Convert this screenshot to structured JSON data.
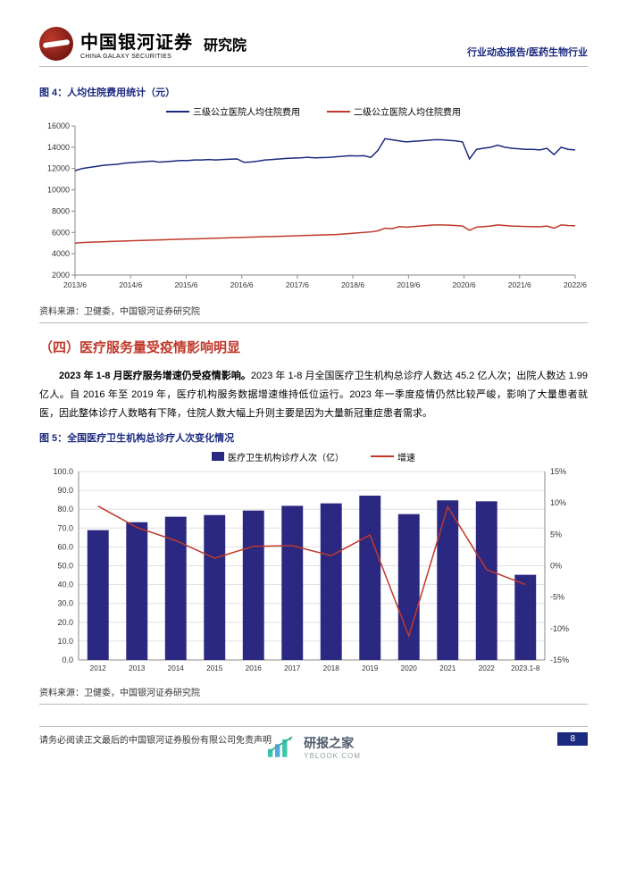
{
  "header": {
    "logo_cn": "中国银河证券",
    "logo_en": "CHINA GALAXY SECURITIES",
    "dept": "研究院",
    "right_text": "行业动态报告/医药生物行业"
  },
  "fig4": {
    "title": "图 4：人均住院费用统计（元）",
    "legend": {
      "s1": {
        "label": "三级公立医院人均住院费用",
        "color": "#1a2a7f"
      },
      "s2": {
        "label": "二级公立医院人均住院费用",
        "color": "#c0392b"
      }
    },
    "ylim": [
      2000,
      16000
    ],
    "ytick_step": 2000,
    "xlabels": [
      "2013/6",
      "2014/6",
      "2015/6",
      "2016/6",
      "2017/6",
      "2018/6",
      "2019/6",
      "2020/6",
      "2021/6",
      "2022/6"
    ],
    "s1_values": [
      11800,
      12000,
      12100,
      12200,
      12300,
      12350,
      12400,
      12500,
      12550,
      12600,
      12650,
      12700,
      12600,
      12650,
      12700,
      12750,
      12750,
      12800,
      12800,
      12850,
      12800,
      12850,
      12880,
      12900,
      12580,
      12620,
      12700,
      12800,
      12850,
      12900,
      12950,
      12980,
      13000,
      13050,
      13000,
      13020,
      13050,
      13100,
      13150,
      13200,
      13180,
      13200,
      13050,
      13700,
      14800,
      14700,
      14600,
      14500,
      14550,
      14600,
      14650,
      14700,
      14700,
      14650,
      14600,
      14500,
      12900,
      13800,
      13900,
      14000,
      14200,
      14000,
      13900,
      13850,
      13800,
      13800,
      13750,
      13900,
      13300,
      14000,
      13800,
      13750
    ],
    "s2_values": [
      5000,
      5050,
      5080,
      5100,
      5120,
      5150,
      5180,
      5200,
      5220,
      5240,
      5260,
      5280,
      5300,
      5320,
      5340,
      5360,
      5380,
      5400,
      5420,
      5440,
      5460,
      5480,
      5500,
      5520,
      5540,
      5560,
      5580,
      5600,
      5620,
      5640,
      5660,
      5680,
      5700,
      5720,
      5740,
      5760,
      5780,
      5800,
      5850,
      5900,
      5950,
      6000,
      6050,
      6150,
      6400,
      6350,
      6550,
      6500,
      6550,
      6600,
      6650,
      6700,
      6700,
      6680,
      6650,
      6600,
      6200,
      6500,
      6550,
      6600,
      6700,
      6650,
      6600,
      6580,
      6560,
      6550,
      6540,
      6600,
      6400,
      6700,
      6650,
      6620
    ],
    "axis_color": "#888888",
    "bg": "#ffffff"
  },
  "src4": "资料来源：卫健委，中国银河证券研究院",
  "section4": {
    "title": "（四）医疗服务量受疫情影响明显",
    "para": "2023 年 1-8 月医疗服务增速仍受疫情影响。2023 年 1-8 月全国医疗卫生机构总诊疗人数达 45.2 亿人次；出院人数达 1.99 亿人。自 2016 年至 2019 年，医疗机构服务数据增速维持低位运行。2023 年一季度疫情仍然比较严峻，影响了大量患者就医，因此整体诊疗人数略有下降，住院人数大幅上升则主要是因为大量新冠重症患者需求。",
    "bold_lead": "2023 年 1-8 月医疗服务增速仍受疫情影响。"
  },
  "fig5": {
    "title": "图 5：全国医疗卫生机构总诊疗人次变化情况",
    "legend": {
      "bar": {
        "label": "医疗卫生机构诊疗人次（亿）",
        "color": "#2a2880"
      },
      "line": {
        "label": "增速",
        "color": "#c0392b"
      }
    },
    "xlabels": [
      "2012",
      "2013",
      "2014",
      "2015",
      "2016",
      "2017",
      "2018",
      "2019",
      "2020",
      "2021",
      "2022",
      "2023.1-8"
    ],
    "bar_values": [
      68.9,
      73.1,
      76.0,
      76.9,
      79.3,
      81.8,
      83.1,
      87.2,
      77.4,
      84.7,
      84.2,
      45.2
    ],
    "line_values": [
      9.5,
      6.1,
      4.0,
      1.2,
      3.1,
      3.2,
      1.6,
      4.9,
      -11.2,
      9.4,
      -0.6,
      -3.0
    ],
    "y1": {
      "lim": [
        0,
        100
      ],
      "tick": 10
    },
    "y2": {
      "lim": [
        -15,
        15
      ],
      "tick": 5
    },
    "bar_width": 0.55,
    "axis_color": "#888888",
    "bg": "#ffffff"
  },
  "src5": "资料来源：卫健委，中国银河证券研究院",
  "footer": {
    "disclaimer": "请务必阅读正文最后的中国银河证券股份有限公司免责声明",
    "page": "8"
  },
  "watermark": {
    "cn": "研报之家",
    "en": "YBLOOK.COM"
  }
}
